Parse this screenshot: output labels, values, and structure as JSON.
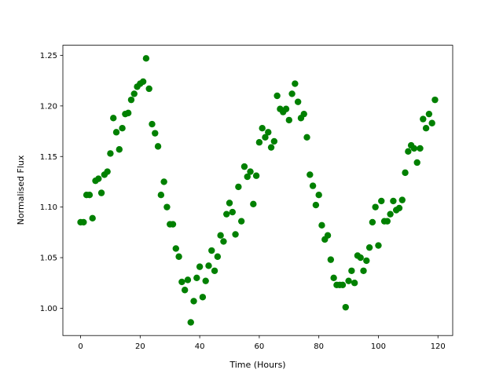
{
  "chart_data": {
    "type": "scatter",
    "xlabel": "Time (Hours)",
    "ylabel": "Normalised Flux",
    "color": "#008000",
    "x": [
      0,
      1,
      2,
      3,
      4,
      5,
      6,
      7,
      8,
      9,
      10,
      11,
      12,
      13,
      14,
      15,
      16,
      17,
      18,
      19,
      20,
      21,
      22,
      23,
      24,
      25,
      26,
      27,
      28,
      29,
      30,
      31,
      32,
      33,
      34,
      35,
      36,
      37,
      38,
      39,
      40,
      41,
      42,
      43,
      44,
      45,
      46,
      47,
      48,
      49,
      50,
      51,
      52,
      53,
      54,
      55,
      56,
      57,
      58,
      59,
      60,
      61,
      62,
      63,
      64,
      65,
      66,
      67,
      68,
      69,
      70,
      71,
      72,
      73,
      74,
      75,
      76,
      77,
      78,
      79,
      80,
      81,
      82,
      83,
      84,
      85,
      86,
      87,
      88,
      89,
      90,
      91,
      92,
      93,
      94,
      95,
      96,
      97,
      98,
      99,
      100,
      101,
      102,
      103,
      104,
      105,
      106,
      107,
      108,
      109,
      110,
      111,
      112,
      113,
      114,
      115,
      116,
      117,
      118,
      119
    ],
    "values": [
      1.085,
      1.085,
      1.112,
      1.112,
      1.089,
      1.126,
      1.128,
      1.114,
      1.132,
      1.135,
      1.153,
      1.188,
      1.174,
      1.157,
      1.178,
      1.192,
      1.193,
      1.206,
      1.212,
      1.219,
      1.222,
      1.224,
      1.247,
      1.217,
      1.182,
      1.173,
      1.16,
      1.112,
      1.125,
      1.1,
      1.083,
      1.083,
      1.059,
      1.051,
      1.026,
      1.018,
      1.028,
      0.986,
      1.007,
      1.03,
      1.041,
      1.011,
      1.027,
      1.042,
      1.057,
      1.037,
      1.051,
      1.072,
      1.066,
      1.093,
      1.104,
      1.095,
      1.073,
      1.12,
      1.086,
      1.14,
      1.13,
      1.135,
      1.103,
      1.131,
      1.164,
      1.178,
      1.169,
      1.174,
      1.159,
      1.165,
      1.21,
      1.197,
      1.194,
      1.197,
      1.186,
      1.212,
      1.222,
      1.204,
      1.188,
      1.192,
      1.169,
      1.132,
      1.121,
      1.102,
      1.112,
      1.082,
      1.068,
      1.072,
      1.048,
      1.03,
      1.023,
      1.023,
      1.023,
      1.001,
      1.027,
      1.037,
      1.025,
      1.052,
      1.05,
      1.037,
      1.047,
      1.06,
      1.085,
      1.1,
      1.062,
      1.106,
      1.086,
      1.086,
      1.093,
      1.106,
      1.097,
      1.099,
      1.107,
      1.134,
      1.155,
      1.161,
      1.158,
      1.144,
      1.158,
      1.187,
      1.178,
      1.192,
      1.183,
      1.206
    ],
    "xlim": [
      -5.95,
      124.95
    ],
    "xticks": [
      0,
      20,
      40,
      60,
      80,
      100,
      120
    ],
    "ylim": [
      0.973,
      1.26
    ],
    "yticks": [
      {
        "value": 1.0,
        "label": "1.00"
      },
      {
        "value": 1.05,
        "label": "1.05"
      },
      {
        "value": 1.1,
        "label": "1.10"
      },
      {
        "value": 1.15,
        "label": "1.15"
      },
      {
        "value": 1.2,
        "label": "1.20"
      },
      {
        "value": 1.25,
        "label": "1.25"
      }
    ],
    "grid": false
  }
}
